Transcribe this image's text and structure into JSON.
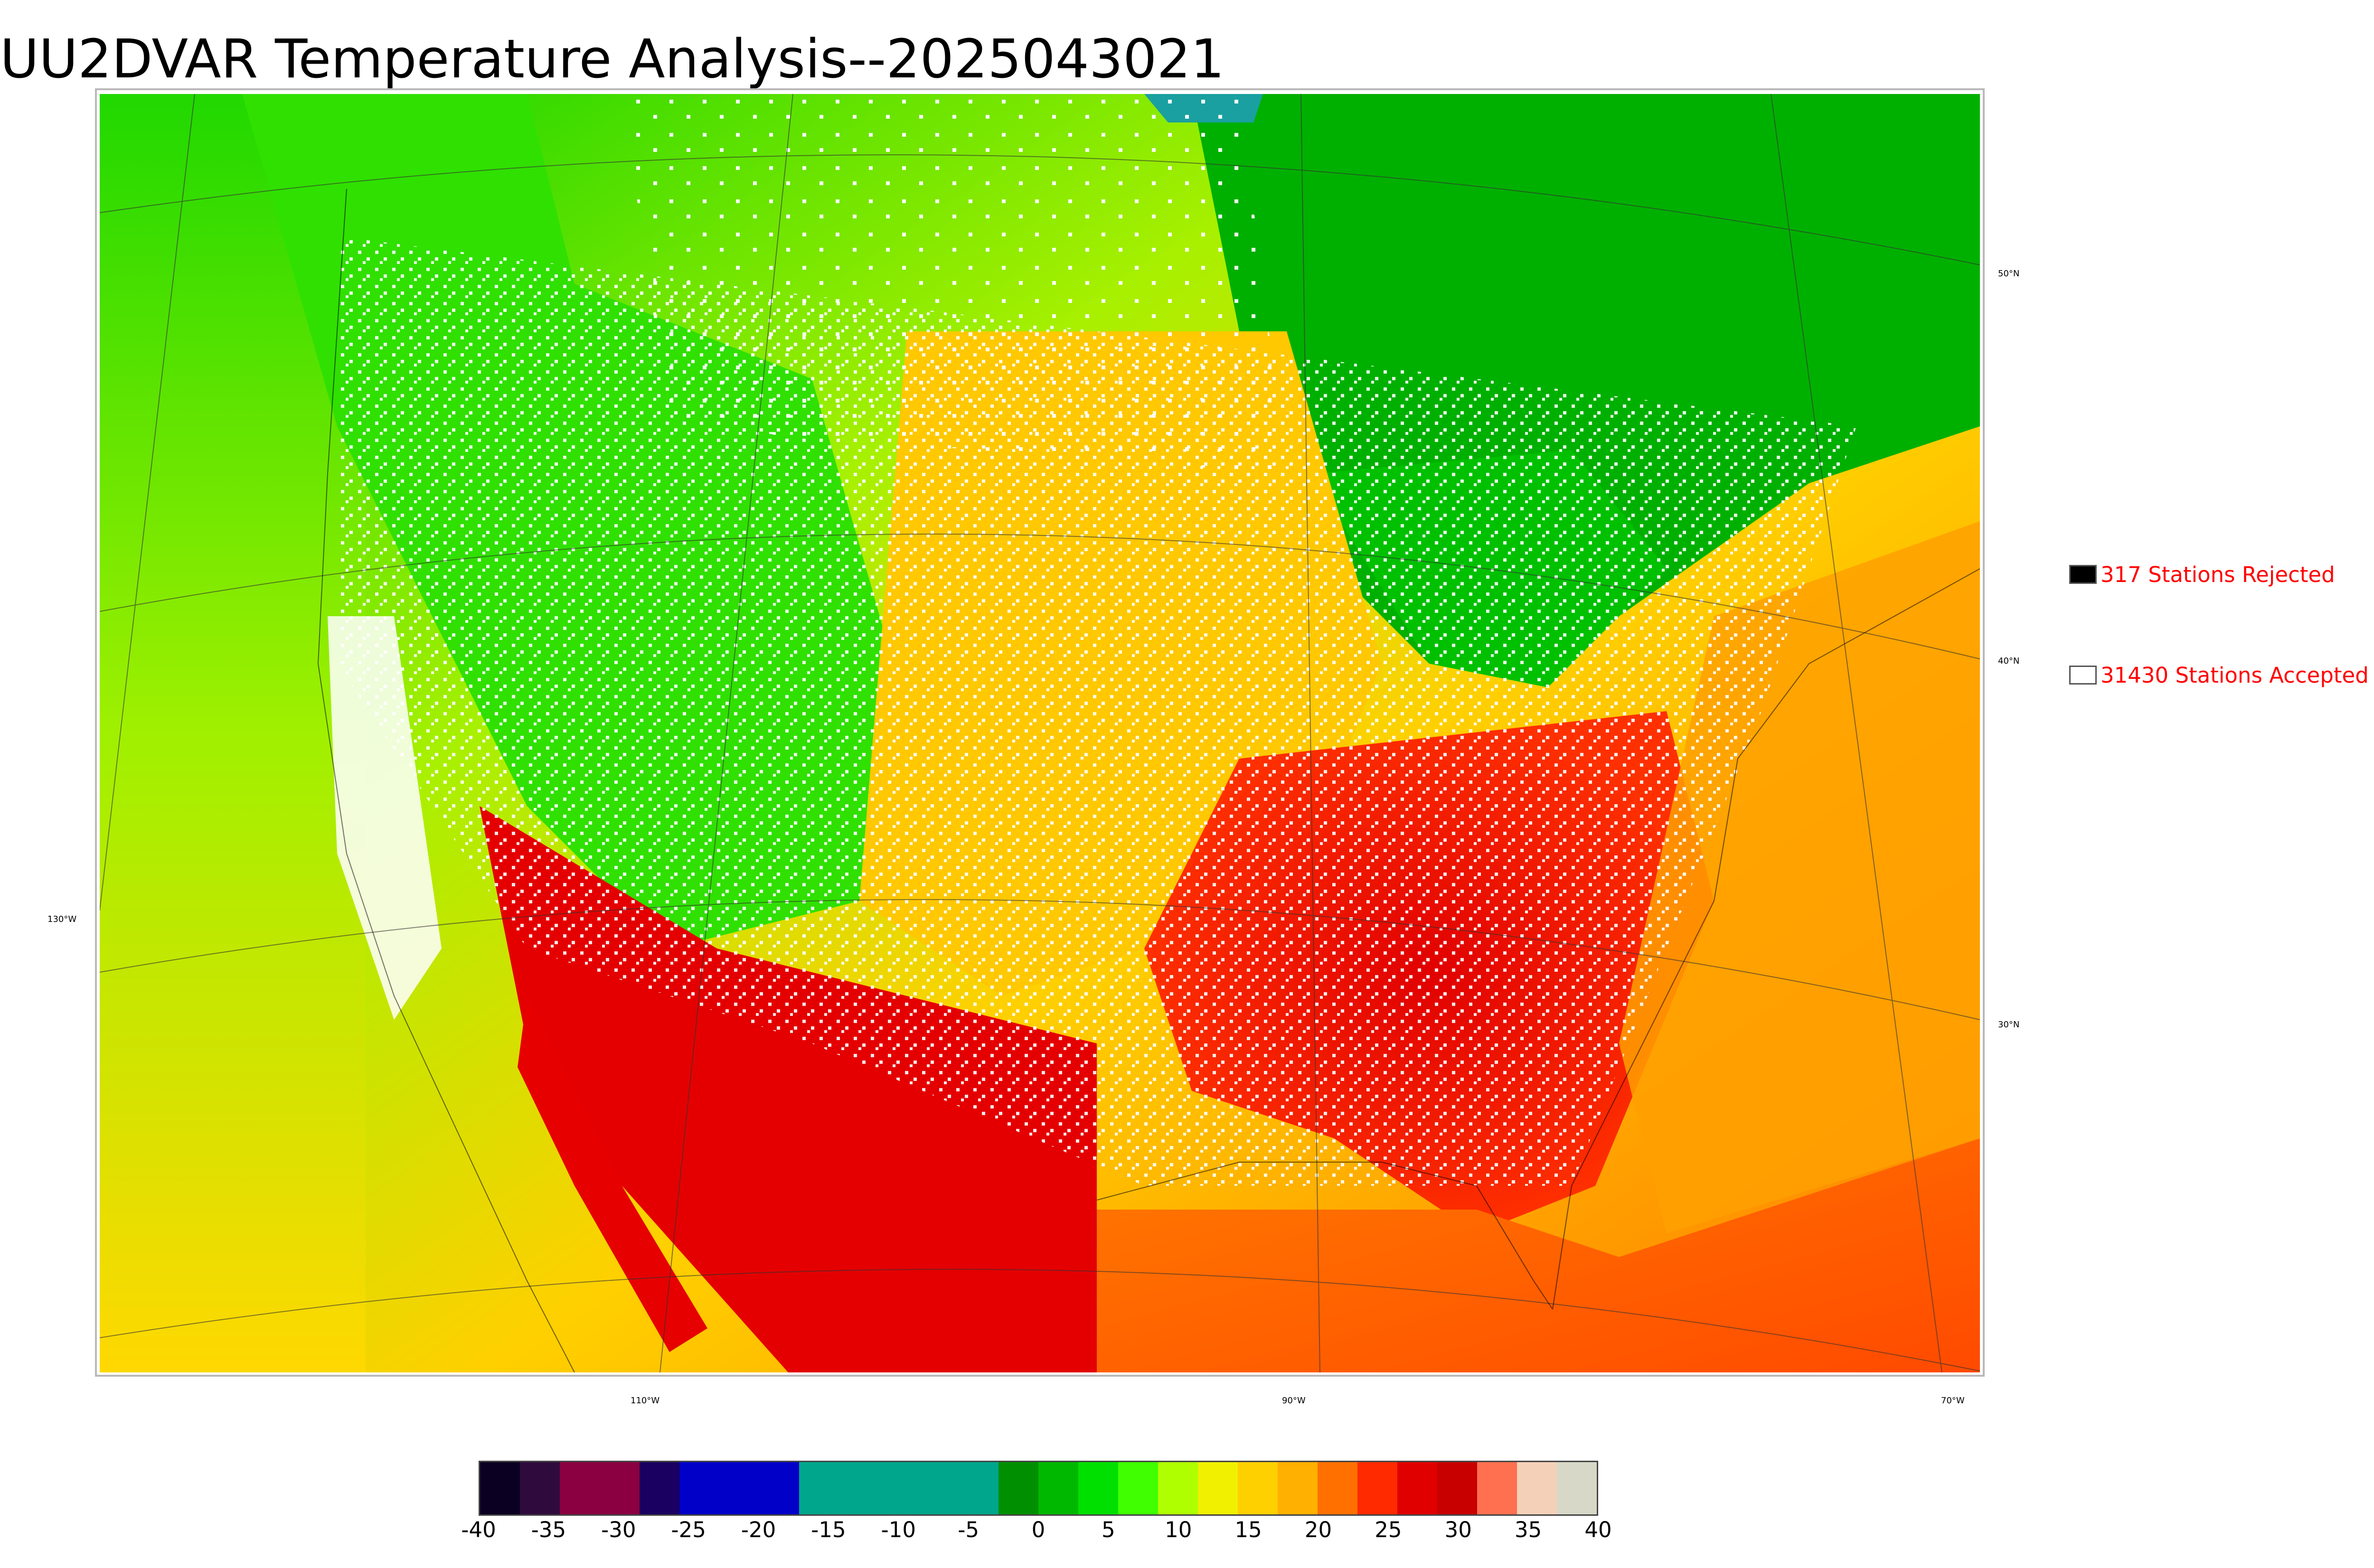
{
  "title": "UU2DVAR Temperature Analysis--2025043021",
  "legend": {
    "rejected": {
      "label": "317 Stations Rejected",
      "fill": "#000000"
    },
    "accepted": {
      "label": "31430 Stations Accepted",
      "fill": "#ffffff"
    }
  },
  "graticule": {
    "lat_labels": [
      "50°N",
      "40°N",
      "30°N"
    ],
    "lon_labels": [
      "110°W",
      "90°W",
      "70°W"
    ],
    "lon_label_left": "130°W"
  },
  "colorbar": {
    "ticks": [
      "-40",
      "-35",
      "-30",
      "-25",
      "-20",
      "-15",
      "-10",
      "-5",
      "0",
      "5",
      "10",
      "15",
      "20",
      "25",
      "30",
      "35",
      "40"
    ],
    "colors": [
      "#0b0021",
      "#2f0b3d",
      "#8a0040",
      "#8a0040",
      "#1a0060",
      "#0000c8",
      "#0000c8",
      "#0000c8",
      "#00a68c",
      "#00a68c",
      "#00a68c",
      "#00a68c",
      "#00a68c",
      "#008f00",
      "#00b800",
      "#00e000",
      "#40ff00",
      "#b0ff00",
      "#f0f000",
      "#ffd000",
      "#ffb000",
      "#ff7000",
      "#ff2a00",
      "#e00000",
      "#c80000",
      "#ff7050",
      "#f5d0b8",
      "#d8d8c8"
    ]
  },
  "colors": {
    "cold": "#00b400",
    "cool": "#3cf000",
    "mild": "#c8ff00",
    "warm": "#ffd200",
    "hot": "#ff3c00",
    "very_hot": "#e10000",
    "ocean_warm": "#ff8c00"
  }
}
